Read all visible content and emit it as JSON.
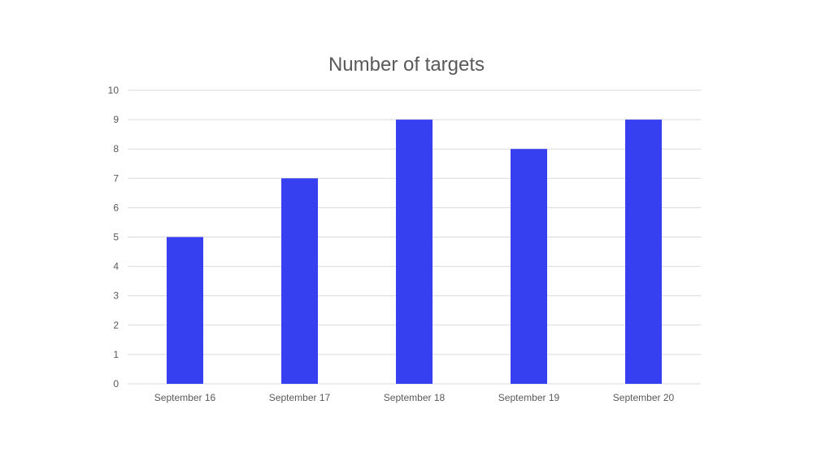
{
  "chart_data": {
    "type": "bar",
    "title": "Number of targets",
    "xlabel": "",
    "ylabel": "",
    "categories": [
      "September 16",
      "September 17",
      "September 18",
      "September 19",
      "September 20"
    ],
    "values": [
      5,
      7,
      9,
      8,
      9
    ],
    "ylim": [
      0,
      10
    ],
    "yticks": [
      "0",
      "1",
      "2",
      "3",
      "4",
      "5",
      "6",
      "7",
      "8",
      "9",
      "10"
    ],
    "grid": true,
    "legend": "none",
    "colors": {
      "bar": "#3640F0",
      "grid": "#D9D9D9",
      "text": "#595959"
    }
  }
}
